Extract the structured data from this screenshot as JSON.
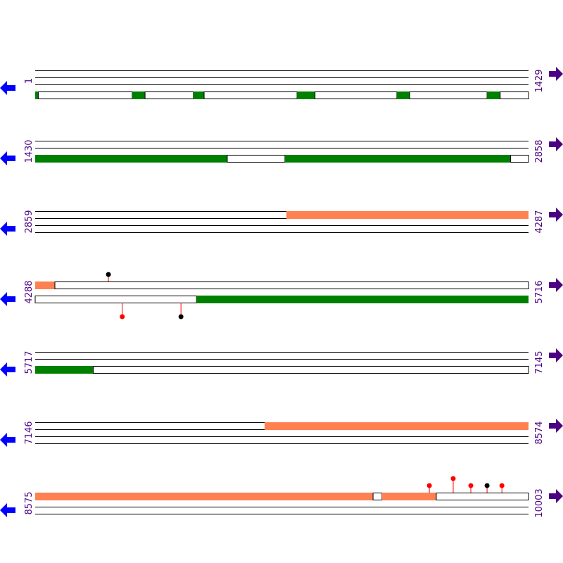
{
  "colors": {
    "cds": "#008000",
    "repeat": "#ff8050",
    "line": "#000000",
    "label": "#4b0082",
    "arrow_left": "#0000ff",
    "arrow_right": "#4b0082",
    "marker_red": "#ff0000",
    "marker_black": "#000000"
  },
  "rows": [
    {
      "start": "1",
      "end": "1429",
      "features": [
        {
          "type": "cds",
          "strand": 4,
          "from": 1,
          "to": 10
        },
        {
          "type": "gap",
          "strand": 4,
          "from": 10,
          "to": 282
        },
        {
          "type": "cds",
          "strand": 4,
          "from": 282,
          "to": 319
        },
        {
          "type": "gap",
          "strand": 4,
          "from": 319,
          "to": 459
        },
        {
          "type": "cds",
          "strand": 4,
          "from": 459,
          "to": 490
        },
        {
          "type": "gap",
          "strand": 4,
          "from": 490,
          "to": 759
        },
        {
          "type": "cds",
          "strand": 4,
          "from": 759,
          "to": 811
        },
        {
          "type": "gap",
          "strand": 4,
          "from": 811,
          "to": 1048
        },
        {
          "type": "cds",
          "strand": 4,
          "from": 1048,
          "to": 1085
        },
        {
          "type": "gap",
          "strand": 4,
          "from": 1085,
          "to": 1309
        },
        {
          "type": "cds",
          "strand": 4,
          "from": 1309,
          "to": 1347
        },
        {
          "type": "gap",
          "strand": 4,
          "from": 1347,
          "to": 1429
        }
      ],
      "markers": []
    },
    {
      "start": "1430",
      "end": "2858",
      "features": [
        {
          "type": "cds",
          "strand": 3,
          "from": 1430,
          "to": 1986
        },
        {
          "type": "gap",
          "strand": 3,
          "from": 1986,
          "to": 2153
        },
        {
          "type": "cds",
          "strand": 3,
          "from": 2153,
          "to": 2806
        },
        {
          "type": "gap",
          "strand": 3,
          "from": 2806,
          "to": 2858
        }
      ],
      "markers": []
    },
    {
      "start": "2859",
      "end": "4287",
      "features": [
        {
          "type": "repeat",
          "strand": 1,
          "from": 3586,
          "to": 4287
        }
      ],
      "markers": []
    },
    {
      "start": "4288",
      "end": "5716",
      "features": [
        {
          "type": "repeat",
          "strand": 1,
          "from": 4288,
          "to": 4345
        },
        {
          "type": "gap",
          "strand": 1,
          "from": 4345,
          "to": 5716
        },
        {
          "type": "gap",
          "strand": 3,
          "from": 4288,
          "to": 4755
        },
        {
          "type": "cds",
          "strand": 3,
          "from": 4755,
          "to": 5716
        }
      ],
      "markers": [
        {
          "pos": 4500,
          "side": "top",
          "length": 10,
          "color": "black"
        },
        {
          "pos": 4540,
          "side": "bottom",
          "length": 20,
          "color": "red"
        },
        {
          "pos": 4710,
          "side": "bottom",
          "length": 20,
          "color": "black"
        }
      ]
    },
    {
      "start": "5717",
      "end": "7145",
      "features": [
        {
          "type": "cds",
          "strand": 3,
          "from": 5717,
          "to": 5885
        },
        {
          "type": "gap",
          "strand": 3,
          "from": 5885,
          "to": 7145
        }
      ],
      "markers": []
    },
    {
      "start": "7146",
      "end": "8574",
      "features": [
        {
          "type": "repeat",
          "strand": 1,
          "from": 7810,
          "to": 8574
        }
      ],
      "markers": []
    },
    {
      "start": "8575",
      "end": "10003",
      "features": [
        {
          "type": "repeat",
          "strand": 1,
          "from": 8575,
          "to": 9553
        },
        {
          "type": "gap",
          "strand": 1,
          "from": 9553,
          "to": 9579
        },
        {
          "type": "repeat",
          "strand": 1,
          "from": 9579,
          "to": 9736
        },
        {
          "type": "gap",
          "strand": 1,
          "from": 9736,
          "to": 10003
        }
      ],
      "markers": [
        {
          "pos": 9716,
          "side": "top",
          "length": 10,
          "color": "red"
        },
        {
          "pos": 9785,
          "side": "top",
          "length": 20,
          "color": "red"
        },
        {
          "pos": 9836,
          "side": "top",
          "length": 10,
          "color": "red"
        },
        {
          "pos": 9883,
          "side": "top",
          "length": 10,
          "color": "black"
        },
        {
          "pos": 9926,
          "side": "top",
          "length": 10,
          "color": "red"
        }
      ]
    }
  ]
}
